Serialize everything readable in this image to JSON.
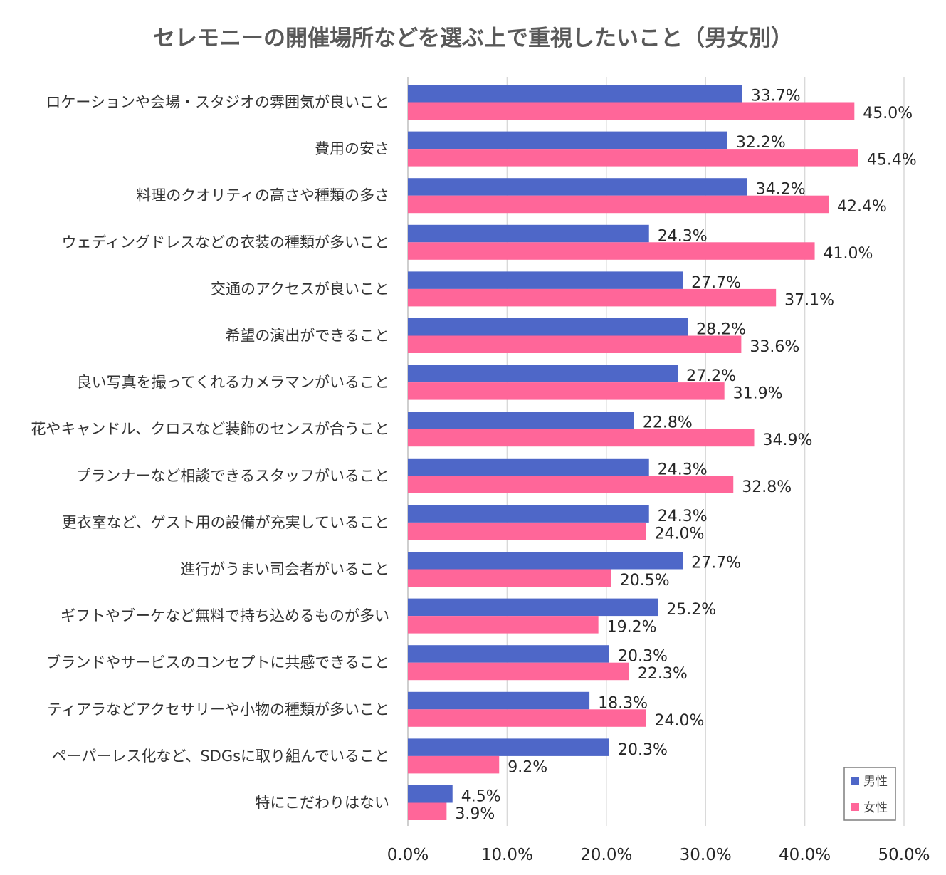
{
  "chart_data": {
    "type": "bar",
    "orientation": "horizontal",
    "title": "セレモニーの開催場所などを選ぶ上で重視したいこと（男女別）",
    "xlabel": "",
    "ylabel": "",
    "xlim": [
      0,
      50
    ],
    "x_ticks": [
      "0.0%",
      "10.0%",
      "20.0%",
      "30.0%",
      "40.0%",
      "50.0%"
    ],
    "grid": true,
    "legend_position": "bottom-right",
    "categories": [
      "ロケーションや会場・スタジオの雰囲気が良いこと",
      "費用の安さ",
      "料理のクオリティの高さや種類の多さ",
      "ウェディングドレスなどの衣装の種類が多いこと",
      "交通のアクセスが良いこと",
      "希望の演出ができること",
      "良い写真を撮ってくれるカメラマンがいること",
      "花やキャンドル、クロスなど装飾のセンスが合うこと",
      "プランナーなど相談できるスタッフがいること",
      "更衣室など、ゲスト用の設備が充実していること",
      "進行がうまい司会者がいること",
      "ギフトやブーケなど無料で持ち込めるものが多い",
      "ブランドやサービスのコンセプトに共感できること",
      "ティアラなどアクセサリーや小物の種類が多いこと",
      "ペーパーレス化など、SDGsに取り組んでいること",
      "特にこだわりはない"
    ],
    "series": [
      {
        "name": "男性",
        "color": "#4e67c8",
        "values": [
          33.7,
          32.2,
          34.2,
          24.3,
          27.7,
          28.2,
          27.2,
          22.8,
          24.3,
          24.3,
          27.7,
          25.2,
          20.3,
          18.3,
          20.3,
          4.5
        ],
        "labels": [
          "33.7%",
          "32.2%",
          "34.2%",
          "24.3%",
          "27.7%",
          "28.2%",
          "27.2%",
          "22.8%",
          "24.3%",
          "24.3%",
          "27.7%",
          "25.2%",
          "20.3%",
          "18.3%",
          "20.3%",
          "4.5%"
        ]
      },
      {
        "name": "女性",
        "color": "#ff6699",
        "values": [
          45.0,
          45.4,
          42.4,
          41.0,
          37.1,
          33.6,
          31.9,
          34.9,
          32.8,
          24.0,
          20.5,
          19.2,
          22.3,
          24.0,
          9.2,
          3.9
        ],
        "labels": [
          "45.0%",
          "45.4%",
          "42.4%",
          "41.0%",
          "37.1%",
          "33.6%",
          "31.9%",
          "34.9%",
          "32.8%",
          "24.0%",
          "20.5%",
          "19.2%",
          "22.3%",
          "24.0%",
          "9.2%",
          "3.9%"
        ]
      }
    ]
  },
  "colors": {
    "gridline": "#d9d9d9",
    "axis_line": "#bfbfbf",
    "legend_border": "#7f7f7f"
  }
}
